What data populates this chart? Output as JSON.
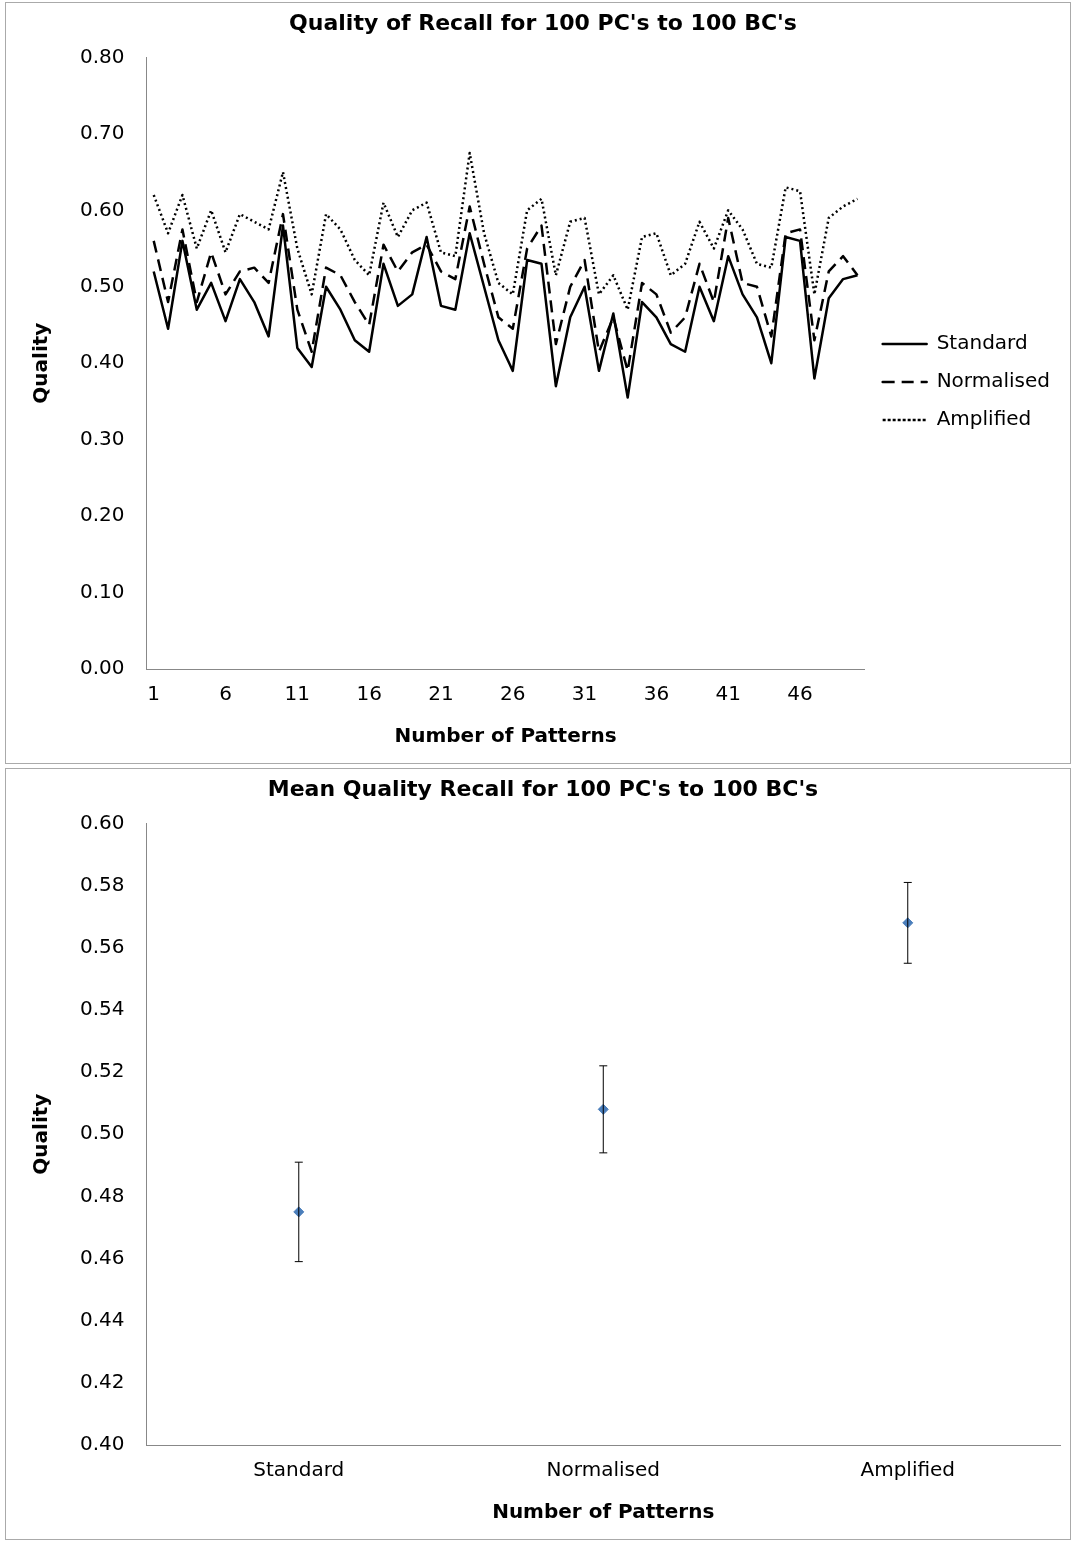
{
  "chart_data": [
    {
      "type": "line",
      "title": "Quality of Recall for 100 PC's to 100 BC's",
      "xlabel": "Number of Patterns",
      "ylabel": "Quality",
      "x": [
        1,
        2,
        3,
        4,
        5,
        6,
        7,
        8,
        9,
        10,
        11,
        12,
        13,
        14,
        15,
        16,
        17,
        18,
        19,
        20,
        21,
        22,
        23,
        24,
        25,
        26,
        27,
        28,
        29,
        30,
        31,
        32,
        33,
        34,
        35,
        36,
        37,
        38,
        39,
        40,
        41,
        42,
        43,
        44,
        45,
        46,
        47,
        48,
        49,
        50
      ],
      "xlim": [
        0.5,
        50.5
      ],
      "xticks": [
        1,
        6,
        11,
        16,
        21,
        26,
        31,
        36,
        41,
        46
      ],
      "series": [
        {
          "name": "Standard",
          "color": "#000000",
          "line_style": "solid",
          "values": [
            0.52,
            0.445,
            0.56,
            0.47,
            0.505,
            0.455,
            0.51,
            0.48,
            0.435,
            0.58,
            0.42,
            0.395,
            0.5,
            0.47,
            0.43,
            0.415,
            0.53,
            0.475,
            0.49,
            0.565,
            0.475,
            0.47,
            0.57,
            0.5,
            0.43,
            0.39,
            0.535,
            0.53,
            0.37,
            0.46,
            0.5,
            0.39,
            0.465,
            0.355,
            0.48,
            0.46,
            0.425,
            0.415,
            0.5,
            0.455,
            0.54,
            0.49,
            0.46,
            0.4,
            0.565,
            0.56,
            0.38,
            0.485,
            0.51,
            0.515
          ]
        },
        {
          "name": "Normalised",
          "color": "#000000",
          "line_style": "dashed",
          "values": [
            0.56,
            0.48,
            0.575,
            0.48,
            0.545,
            0.49,
            0.52,
            0.525,
            0.505,
            0.595,
            0.47,
            0.415,
            0.525,
            0.515,
            0.48,
            0.45,
            0.555,
            0.52,
            0.545,
            0.555,
            0.52,
            0.51,
            0.605,
            0.53,
            0.46,
            0.445,
            0.55,
            0.58,
            0.425,
            0.5,
            0.535,
            0.415,
            0.46,
            0.39,
            0.505,
            0.49,
            0.44,
            0.46,
            0.53,
            0.48,
            0.59,
            0.505,
            0.5,
            0.435,
            0.57,
            0.575,
            0.43,
            0.52,
            0.54,
            0.515
          ]
        },
        {
          "name": "Amplified",
          "color": "#000000",
          "line_style": "dotted",
          "values": [
            0.62,
            0.57,
            0.62,
            0.55,
            0.6,
            0.545,
            0.595,
            0.585,
            0.575,
            0.65,
            0.55,
            0.49,
            0.595,
            0.575,
            0.535,
            0.515,
            0.61,
            0.565,
            0.6,
            0.61,
            0.545,
            0.54,
            0.675,
            0.57,
            0.505,
            0.49,
            0.6,
            0.615,
            0.515,
            0.585,
            0.59,
            0.49,
            0.515,
            0.47,
            0.565,
            0.57,
            0.515,
            0.53,
            0.585,
            0.55,
            0.6,
            0.575,
            0.53,
            0.525,
            0.63,
            0.625,
            0.49,
            0.59,
            0.605,
            0.615
          ]
        }
      ],
      "ylim": [
        0,
        0.8
      ],
      "yticks": [
        {
          "value": 0,
          "label": "0.00"
        },
        {
          "value": 0.1,
          "label": "0.10"
        },
        {
          "value": 0.2,
          "label": "0.20"
        },
        {
          "value": 0.3,
          "label": "0.30"
        },
        {
          "value": 0.4,
          "label": "0.40"
        },
        {
          "value": 0.5,
          "label": "0.50"
        },
        {
          "value": 0.6,
          "label": "0.60"
        },
        {
          "value": 0.7,
          "label": "0.70"
        },
        {
          "value": 0.8,
          "label": "0.80"
        }
      ],
      "grid": false,
      "legend": "right",
      "marker": "none"
    },
    {
      "type": "scatter",
      "title": "Mean Quality Recall for 100 PC's to 100 BC's",
      "xlabel": "Number of Patterns",
      "ylabel": "Quality",
      "categories": [
        "Standard",
        "Normalised",
        "Amplified"
      ],
      "series": [
        {
          "color": "#4a7ebb",
          "values": [
            0.475,
            0.508,
            0.568
          ],
          "errors": [
            0.016,
            0.014,
            0.013
          ]
        }
      ],
      "ylim": [
        0.4,
        0.6
      ],
      "yticks": [
        {
          "value": 0.4,
          "label": "0.40"
        },
        {
          "value": 0.42,
          "label": "0.42"
        },
        {
          "value": 0.44,
          "label": "0.44"
        },
        {
          "value": 0.46,
          "label": "0.46"
        },
        {
          "value": 0.48,
          "label": "0.48"
        },
        {
          "value": 0.5,
          "label": "0.50"
        },
        {
          "value": 0.52,
          "label": "0.52"
        },
        {
          "value": 0.54,
          "label": "0.54"
        },
        {
          "value": 0.56,
          "label": "0.56"
        },
        {
          "value": 0.58,
          "label": "0.58"
        },
        {
          "value": 0.6,
          "label": "0.60"
        }
      ],
      "grid": false,
      "legend": false,
      "marker": "diamond"
    }
  ]
}
